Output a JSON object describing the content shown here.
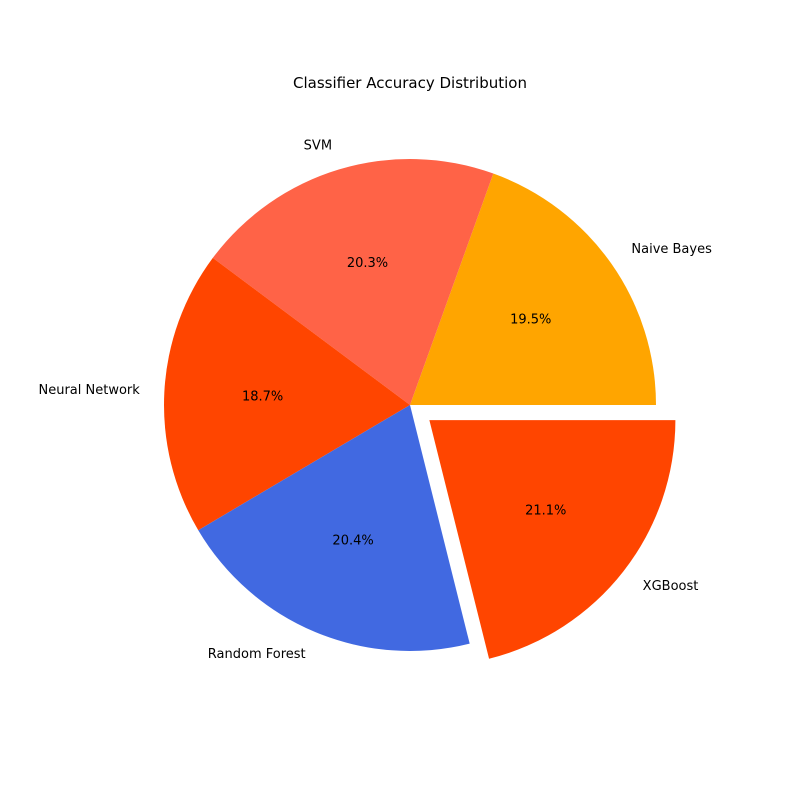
{
  "chart_data": {
    "type": "pie",
    "title": "Classifier Accuracy Distribution",
    "slices": [
      {
        "label": "Naive Bayes",
        "value": 19.5,
        "pct_label": "19.5%",
        "color": "#FFA500",
        "exploded": false
      },
      {
        "label": "SVM",
        "value": 20.3,
        "pct_label": "20.3%",
        "color": "#FF6347",
        "exploded": false
      },
      {
        "label": "Neural Network",
        "value": 18.7,
        "pct_label": "18.7%",
        "color": "#FF4500",
        "exploded": false
      },
      {
        "label": "Random Forest",
        "value": 20.4,
        "pct_label": "20.4%",
        "color": "#4169E1",
        "exploded": false
      },
      {
        "label": "XGBoost",
        "value": 21.1,
        "pct_label": "21.1%",
        "color": "#FF4500",
        "exploded": true
      }
    ]
  }
}
